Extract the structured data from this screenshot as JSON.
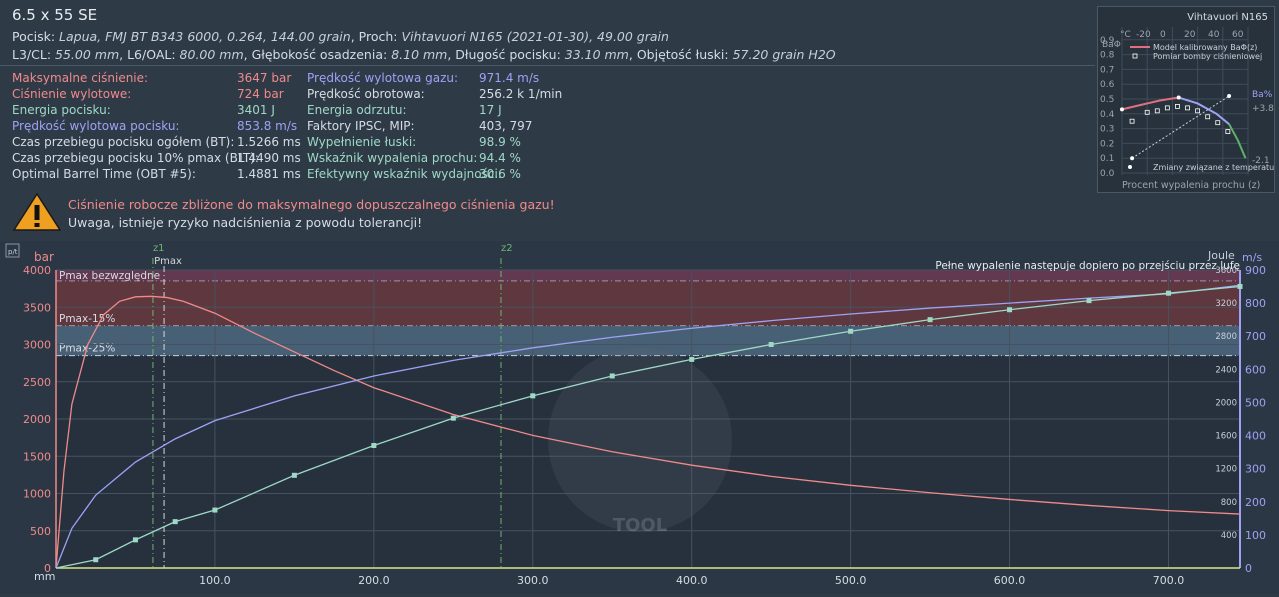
{
  "header": {
    "title": "6.5 x 55 SE",
    "line1_parts": [
      {
        "t": "Pocisk: "
      },
      {
        "t": "Lapua, FMJ BT B343 6000, 0.264, 144.00 grain",
        "i": true
      },
      {
        "t": ", Proch: "
      },
      {
        "t": "Vihtavuori N165 (2021-01-30), 49.00 grain",
        "i": true
      }
    ],
    "line2_parts": [
      {
        "t": "L3/CL: "
      },
      {
        "t": "55.00 mm",
        "i": true
      },
      {
        "t": ", L6/OAL: "
      },
      {
        "t": "80.00 mm",
        "i": true
      },
      {
        "t": ", Głębokość osadzenia: "
      },
      {
        "t": "8.10 mm",
        "i": true
      },
      {
        "t": ", Długość pocisku: "
      },
      {
        "t": "33.10 mm",
        "i": true
      },
      {
        "t": ", Objętość łuski: "
      },
      {
        "t": "57.20 grain H2O",
        "i": true
      }
    ]
  },
  "stats_left": [
    {
      "label": "Maksymalne ciśnienie:",
      "value": "3647 bar",
      "color": "pink"
    },
    {
      "label": "Ciśnienie wylotowe:",
      "value": "724 bar",
      "color": "pink"
    },
    {
      "label": "Energia pocisku:",
      "value": "3401 J",
      "color": "teal"
    },
    {
      "label": "Prędkość wylotowa pocisku:",
      "value": "853.8 m/s",
      "color": "blue"
    },
    {
      "label": "Czas przebiegu pocisku ogółem (BT):",
      "value": "1.5266 ms",
      "color": ""
    },
    {
      "label": "Czas przebiegu pocisku 10% pmax (BLT):",
      "value": "1.4490 ms",
      "color": ""
    },
    {
      "label": "Optimal Barrel Time (OBT #5):",
      "value": "1.4881 ms",
      "color": ""
    }
  ],
  "stats_right": [
    {
      "label": "Prędkość wylotowa gazu:",
      "value": "971.4 m/s",
      "color": "blue"
    },
    {
      "label": "Prędkość obrotowa:",
      "value": "256.2 k 1/min",
      "color": ""
    },
    {
      "label": "Energia odrzutu:",
      "value": "17 J",
      "color": "teal"
    },
    {
      "label": "Faktory IPSC, MIP:",
      "value": "403, 797",
      "color": ""
    },
    {
      "label": "Wypełnienie łuski:",
      "value": "98.9 %",
      "color": "teal"
    },
    {
      "label": "Wskaźnik wypalenia prochu:",
      "value": "94.4 %",
      "color": "teal"
    },
    {
      "label": "Efektywny wskaźnik wydajności:",
      "value": "30.6 %",
      "color": "teal"
    }
  ],
  "warning": {
    "line1": "Ciśnienie robocze zbliżone do maksymalnego dopuszczalnego ciśnienia gazu!",
    "line2": "Uwaga, istnieje ryzyko nadciśnienia z powodu tolerancji!"
  },
  "mini_chart": {
    "title": "Vihtavuori N165",
    "ylabel": "BaΦ",
    "y2label": "Ba%",
    "xlabel": "Procent wypalenia prochu (z)",
    "temp_label": "°C",
    "temp_ticks": [
      "-20",
      "0",
      "20",
      "40",
      "60"
    ],
    "y_ticks": [
      "0.0",
      "0.1",
      "0.2",
      "0.3",
      "0.4",
      "0.5",
      "0.6",
      "0.7",
      "0.8",
      "0.9"
    ],
    "y2_ticks": [
      "+3.8",
      "-2.1"
    ],
    "legend": [
      "Model kalibrowany BaΦ(z)",
      "Pomiar bomby ciśnieniowej",
      "Zmiany związane z temperaturą"
    ]
  },
  "chart_data": {
    "type": "line",
    "xlabel": "mm",
    "ylabel": "bar",
    "y2label": "Joule",
    "y3label": "m/s",
    "x_ticks": [
      100,
      200,
      300,
      400,
      500,
      600,
      700
    ],
    "x_tick_labels": [
      "100.0",
      "200.0",
      "300.0",
      "400.0",
      "500.0",
      "600.0",
      "700.0"
    ],
    "xlim": [
      0,
      745
    ],
    "ylim": [
      0,
      4000
    ],
    "y_ticks": [
      0,
      500,
      1000,
      1500,
      2000,
      2500,
      3000,
      3500,
      4000
    ],
    "y2lim": [
      0,
      3600
    ],
    "y2_ticks": [
      400,
      800,
      1200,
      1600,
      2000,
      2400,
      2800,
      3200,
      3600
    ],
    "y3lim": [
      0,
      900
    ],
    "y3_ticks": [
      0,
      100,
      200,
      300,
      400,
      500,
      600,
      700,
      800,
      900
    ],
    "bands": [
      {
        "label": "Pmax bezwzględne",
        "from": 3850,
        "to": 4000,
        "color": "#6e3a55"
      },
      {
        "label": "Pmax-15%",
        "from": 3250,
        "to": 3850,
        "color": "#6a3a40"
      },
      {
        "label": "Pmax-25%",
        "from": 2850,
        "to": 3250,
        "color": "#4f6880"
      }
    ],
    "markers": [
      {
        "label": "z1",
        "x": 61,
        "color": "#6fb56f"
      },
      {
        "label": "Pmax",
        "x": 68,
        "color": "#d8d8d8"
      },
      {
        "label": "z2",
        "x": 280,
        "color": "#6fb56f"
      }
    ],
    "top_note": "Pełne wypalenie następuje dopiero po przejściu przez lufę",
    "series": [
      {
        "axis": "bar",
        "color": "#f08a8a",
        "points": [
          [
            0,
            0
          ],
          [
            5,
            1300
          ],
          [
            10,
            2200
          ],
          [
            20,
            3000
          ],
          [
            30,
            3400
          ],
          [
            40,
            3580
          ],
          [
            50,
            3640
          ],
          [
            60,
            3647
          ],
          [
            70,
            3630
          ],
          [
            80,
            3580
          ],
          [
            100,
            3420
          ],
          [
            125,
            3150
          ],
          [
            150,
            2900
          ],
          [
            175,
            2650
          ],
          [
            200,
            2420
          ],
          [
            250,
            2060
          ],
          [
            300,
            1780
          ],
          [
            350,
            1560
          ],
          [
            400,
            1380
          ],
          [
            450,
            1230
          ],
          [
            500,
            1110
          ],
          [
            550,
            1010
          ],
          [
            600,
            920
          ],
          [
            650,
            840
          ],
          [
            700,
            770
          ],
          [
            745,
            724
          ]
        ]
      },
      {
        "axis": "m/s",
        "color": "#9ea2f5",
        "points": [
          [
            0,
            0
          ],
          [
            10,
            120
          ],
          [
            25,
            220
          ],
          [
            50,
            320
          ],
          [
            75,
            390
          ],
          [
            100,
            445
          ],
          [
            150,
            520
          ],
          [
            200,
            580
          ],
          [
            250,
            627
          ],
          [
            300,
            665
          ],
          [
            350,
            697
          ],
          [
            400,
            724
          ],
          [
            450,
            747
          ],
          [
            500,
            767
          ],
          [
            550,
            785
          ],
          [
            600,
            800
          ],
          [
            650,
            815
          ],
          [
            700,
            828
          ],
          [
            745,
            854
          ]
        ]
      },
      {
        "axis": "Joule",
        "color": "#9ed9c6",
        "points": [
          [
            0,
            0
          ],
          [
            25,
            100
          ],
          [
            50,
            340
          ],
          [
            75,
            560
          ],
          [
            100,
            700
          ],
          [
            150,
            1120
          ],
          [
            200,
            1480
          ],
          [
            250,
            1810
          ],
          [
            300,
            2080
          ],
          [
            350,
            2320
          ],
          [
            400,
            2520
          ],
          [
            450,
            2700
          ],
          [
            500,
            2860
          ],
          [
            550,
            3000
          ],
          [
            600,
            3120
          ],
          [
            650,
            3230
          ],
          [
            700,
            3320
          ],
          [
            745,
            3401
          ]
        ]
      }
    ]
  }
}
